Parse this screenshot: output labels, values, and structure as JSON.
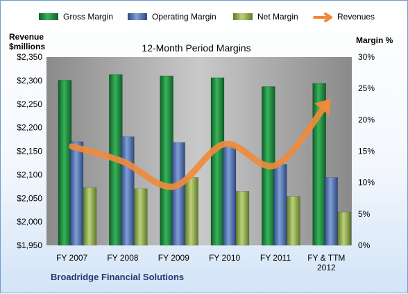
{
  "chart_data": {
    "type": "bar",
    "title": "12-Month Period Margins",
    "company": "Broadridge Financial Solutions",
    "left_axis_title": [
      "Revenue",
      "$millions"
    ],
    "right_axis_title": "Margin %",
    "categories": [
      [
        "FY 2007"
      ],
      [
        "FY 2008"
      ],
      [
        "FY 2009"
      ],
      [
        "FY 2010"
      ],
      [
        "FY 2011"
      ],
      [
        "FY & TTM",
        "2012"
      ]
    ],
    "left_axis": {
      "min": 1950,
      "max": 2350,
      "step": 50,
      "tick_labels": [
        "$1,950",
        "$2,000",
        "$2,050",
        "$2,100",
        "$2,150",
        "$2,200",
        "$2,250",
        "$2,300",
        "$2,350"
      ]
    },
    "right_axis": {
      "min": 0,
      "max": 30,
      "step": 5,
      "tick_labels": [
        "0%",
        "5%",
        "10%",
        "15%",
        "20%",
        "25%",
        "30%"
      ]
    },
    "series": [
      {
        "name": "Gross Margin",
        "kind": "bar",
        "axis": "right",
        "color": "#1f8a3c",
        "values": [
          26.3,
          27.2,
          27.0,
          26.7,
          25.3,
          25.8
        ]
      },
      {
        "name": "Operating Margin",
        "kind": "bar",
        "axis": "right",
        "color": "#4f6fa8",
        "values": [
          16.5,
          17.3,
          16.4,
          15.8,
          12.9,
          10.8
        ]
      },
      {
        "name": "Net Margin",
        "kind": "bar",
        "axis": "right",
        "color": "#8fa84d",
        "values": [
          9.2,
          9.0,
          10.8,
          8.6,
          7.8,
          5.3
        ]
      },
      {
        "name": "Revenues",
        "kind": "line",
        "axis": "left",
        "color": "#f08a3c",
        "values": [
          2160,
          2128,
          2075,
          2165,
          2120,
          2250
        ]
      }
    ],
    "legend_position": "top",
    "grid": false
  }
}
